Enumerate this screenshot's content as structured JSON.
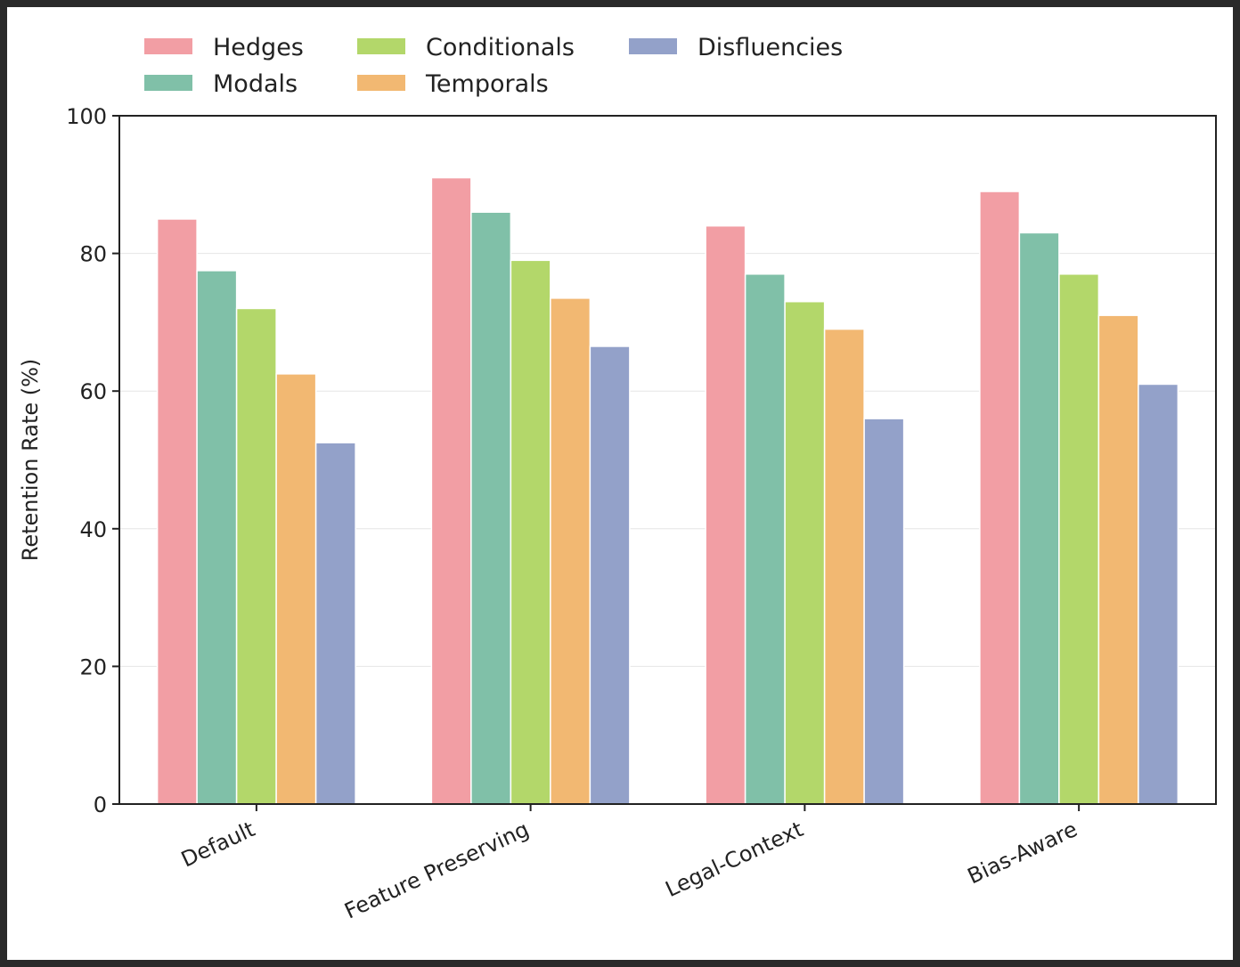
{
  "chart_data": {
    "type": "bar",
    "title": "",
    "xlabel": "",
    "ylabel": "Retention Rate (%)",
    "ylim": [
      0,
      100
    ],
    "yticks": [
      0,
      20,
      40,
      60,
      80,
      100
    ],
    "grid": "y",
    "legend_position": "top",
    "categories": [
      "Default",
      "Feature Preserving",
      "Legal-Context",
      "Bias-Aware"
    ],
    "series": [
      {
        "name": "Hedges",
        "color": "#f29ea4",
        "values": [
          85,
          91,
          84,
          89
        ]
      },
      {
        "name": "Modals",
        "color": "#80c0a8",
        "values": [
          77.5,
          86,
          77,
          83
        ]
      },
      {
        "name": "Conditionals",
        "color": "#b3d76a",
        "values": [
          72,
          79,
          73,
          77
        ]
      },
      {
        "name": "Temporals",
        "color": "#f2b872",
        "values": [
          62.5,
          73.5,
          69,
          71
        ]
      },
      {
        "name": "Disfluencies",
        "color": "#93a1c9",
        "values": [
          52.5,
          66.5,
          56,
          61
        ]
      }
    ]
  }
}
